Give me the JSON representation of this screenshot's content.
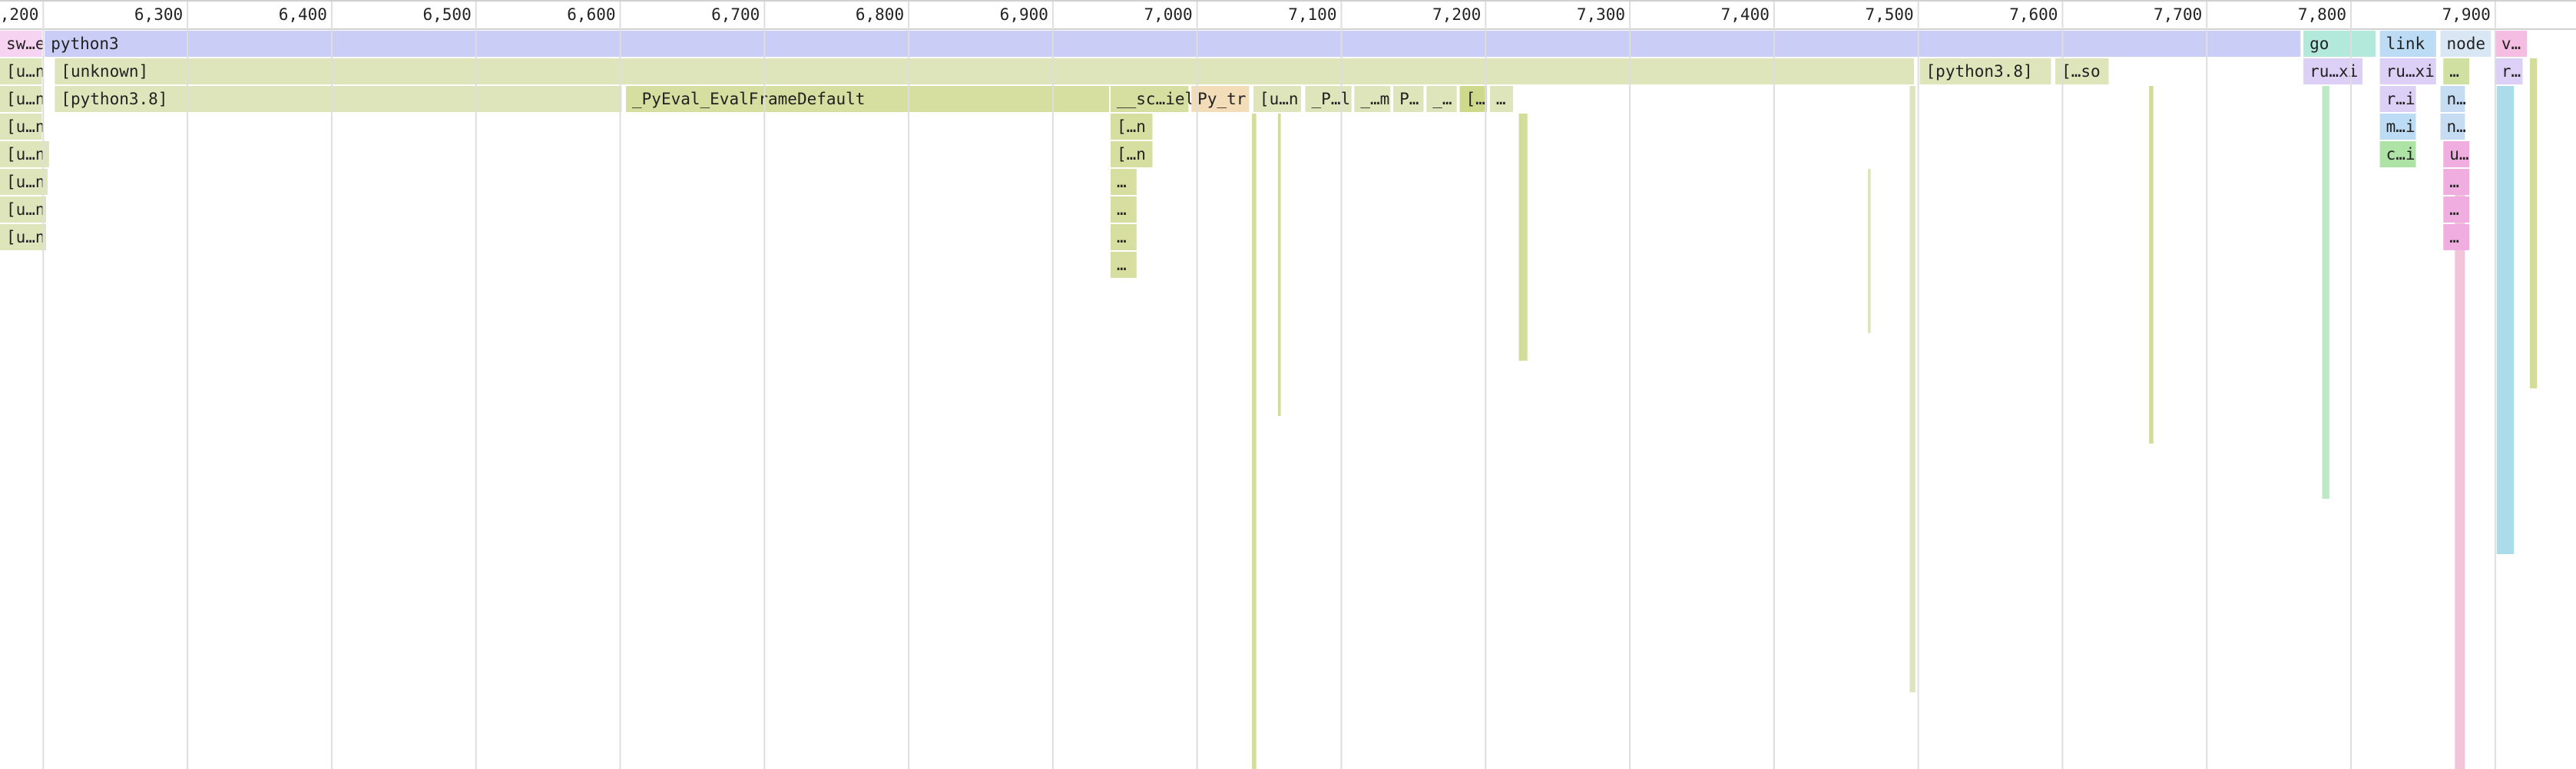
{
  "chart_data": {
    "type": "flamegraph",
    "xlim": [
      6170,
      7956
    ],
    "xticks": [
      {
        "value": 6200,
        "label": "6,200"
      },
      {
        "value": 6300,
        "label": "6,300"
      },
      {
        "value": 6400,
        "label": "6,400"
      },
      {
        "value": 6500,
        "label": "6,500"
      },
      {
        "value": 6600,
        "label": "6,600"
      },
      {
        "value": 6700,
        "label": "6,700"
      },
      {
        "value": 6800,
        "label": "6,800"
      },
      {
        "value": 6900,
        "label": "6,900"
      },
      {
        "value": 7000,
        "label": "7,000"
      },
      {
        "value": 7100,
        "label": "7,100"
      },
      {
        "value": 7200,
        "label": "7,200"
      },
      {
        "value": 7300,
        "label": "7,300"
      },
      {
        "value": 7400,
        "label": "7,400"
      },
      {
        "value": 7500,
        "label": "7,500"
      },
      {
        "value": 7600,
        "label": "7,600"
      },
      {
        "value": 7700,
        "label": "7,700"
      },
      {
        "value": 7800,
        "label": "7,800"
      },
      {
        "value": 7900,
        "label": "7,900"
      }
    ],
    "grid": true,
    "frames": [
      {
        "name": "sw…e",
        "depth": 0,
        "start": 6170,
        "end": 6199,
        "color": "#f6d3f0"
      },
      {
        "name": "python3",
        "depth": 0,
        "start": 6201,
        "end": 7765,
        "color": "#cacdf6"
      },
      {
        "name": "go",
        "depth": 0,
        "start": 7767,
        "end": 7817,
        "color": "#b3e9da"
      },
      {
        "name": "link",
        "depth": 0,
        "start": 7820,
        "end": 7859,
        "color": "#bcdcf6"
      },
      {
        "name": "node",
        "depth": 0,
        "start": 7862,
        "end": 7897,
        "color": "#d9e6f4"
      },
      {
        "name": "v…",
        "depth": 0,
        "start": 7900,
        "end": 7922,
        "color": "#f6bde2"
      },
      {
        "name": "[u…n",
        "depth": 1,
        "start": 6170,
        "end": 6199,
        "color": "#dfe5bb"
      },
      {
        "name": "[unknown]",
        "depth": 1,
        "start": 6208,
        "end": 7497,
        "color": "#dfe5bb"
      },
      {
        "name": "[python3.8]",
        "depth": 1,
        "start": 7501,
        "end": 7592,
        "color": "#dfe5bb"
      },
      {
        "name": "[…so",
        "depth": 1,
        "start": 7595,
        "end": 7632,
        "color": "#dfe5bb"
      },
      {
        "name": "ru…xi",
        "depth": 1,
        "start": 7767,
        "end": 7808,
        "color": "#ddd0f6"
      },
      {
        "name": "ru…xi",
        "depth": 1,
        "start": 7820,
        "end": 7859,
        "color": "#ddd0f6"
      },
      {
        "name": "…",
        "depth": 1,
        "start": 7864,
        "end": 7882,
        "color": "#cfe0a0"
      },
      {
        "name": "r…",
        "depth": 1,
        "start": 7900,
        "end": 7919,
        "color": "#ddd0f6"
      },
      {
        "name": "[u…n",
        "depth": 2,
        "start": 6170,
        "end": 6199,
        "color": "#dfe5bb"
      },
      {
        "name": "[python3.8]",
        "depth": 2,
        "start": 6208,
        "end": 6601,
        "color": "#dfe5bb"
      },
      {
        "name": "_PyEval_EvalFrameDefault",
        "depth": 2,
        "start": 6604,
        "end": 6939,
        "color": "#d6df9f"
      },
      {
        "name": "__sc…iel",
        "depth": 2,
        "start": 6940,
        "end": 6994,
        "color": "#d6df9f"
      },
      {
        "name": "Py_tr",
        "depth": 2,
        "start": 6996,
        "end": 7036,
        "color": "#f3dcb8"
      },
      {
        "name": "[u…n",
        "depth": 2,
        "start": 7039,
        "end": 7072,
        "color": "#dfe5bb"
      },
      {
        "name": "_P…l",
        "depth": 2,
        "start": 7075,
        "end": 7107,
        "color": "#dfe5bb"
      },
      {
        "name": "_…m",
        "depth": 2,
        "start": 7109,
        "end": 7134,
        "color": "#dfe5bb"
      },
      {
        "name": "P…",
        "depth": 2,
        "start": 7136,
        "end": 7157,
        "color": "#dfe5bb"
      },
      {
        "name": "_…",
        "depth": 2,
        "start": 7159,
        "end": 7180,
        "color": "#dfe5bb"
      },
      {
        "name": "[…",
        "depth": 2,
        "start": 7182,
        "end": 7201,
        "color": "#cfd98c"
      },
      {
        "name": "…",
        "depth": 2,
        "start": 7203,
        "end": 7219,
        "color": "#dfe5bb"
      },
      {
        "name": "r…i",
        "depth": 2,
        "start": 7820,
        "end": 7845,
        "color": "#ddd0f6"
      },
      {
        "name": "n…",
        "depth": 2,
        "start": 7862,
        "end": 7879,
        "color": "#c6dcf2"
      },
      {
        "name": "[u…n",
        "depth": 3,
        "start": 6170,
        "end": 6199,
        "color": "#dfe5bb"
      },
      {
        "name": "[…n",
        "depth": 3,
        "start": 6940,
        "end": 6969,
        "color": "#d6df9f"
      },
      {
        "name": "m…i",
        "depth": 3,
        "start": 7820,
        "end": 7845,
        "color": "#bcdcf6"
      },
      {
        "name": "n…",
        "depth": 3,
        "start": 7862,
        "end": 7879,
        "color": "#c6dcf2"
      },
      {
        "name": "[u…n",
        "depth": 4,
        "start": 6170,
        "end": 6204,
        "color": "#dfe5bb"
      },
      {
        "name": "[…n",
        "depth": 4,
        "start": 6940,
        "end": 6969,
        "color": "#d6df9f"
      },
      {
        "name": "c…i",
        "depth": 4,
        "start": 7820,
        "end": 7845,
        "color": "#aee3a6"
      },
      {
        "name": "u…",
        "depth": 4,
        "start": 7864,
        "end": 7882,
        "color": "#f0addf"
      },
      {
        "name": "[u…n",
        "depth": 5,
        "start": 6170,
        "end": 6203,
        "color": "#dfe5bb"
      },
      {
        "name": "…",
        "depth": 5,
        "start": 6940,
        "end": 6958,
        "color": "#d6df9f"
      },
      {
        "name": "…",
        "depth": 5,
        "start": 7864,
        "end": 7882,
        "color": "#f0addf"
      },
      {
        "name": "[u…n",
        "depth": 6,
        "start": 6170,
        "end": 6202,
        "color": "#dfe5bb"
      },
      {
        "name": "…",
        "depth": 6,
        "start": 6940,
        "end": 6958,
        "color": "#d6df9f"
      },
      {
        "name": "…",
        "depth": 6,
        "start": 7864,
        "end": 7882,
        "color": "#f0addf"
      },
      {
        "name": "[u…n",
        "depth": 7,
        "start": 6170,
        "end": 6202,
        "color": "#dfe5bb"
      },
      {
        "name": "…",
        "depth": 7,
        "start": 6940,
        "end": 6958,
        "color": "#d6df9f"
      },
      {
        "name": "…",
        "depth": 7,
        "start": 7864,
        "end": 7882,
        "color": "#f0addf"
      },
      {
        "name": "…",
        "depth": 8,
        "start": 6940,
        "end": 6958,
        "color": "#d6df9f"
      }
    ],
    "slices": [
      {
        "start": 7038,
        "end": 7041,
        "depths": [
          3,
          26
        ],
        "color": "#d3dc9a"
      },
      {
        "start": 7056,
        "end": 7058,
        "depths": [
          3,
          13
        ],
        "color": "#d3dc9a"
      },
      {
        "start": 7223,
        "end": 7229,
        "depths": [
          3,
          11
        ],
        "color": "#d3dc9a"
      },
      {
        "start": 7465,
        "end": 7467,
        "depths": [
          5,
          10
        ],
        "color": "#dfe5bb"
      },
      {
        "start": 7494,
        "end": 7498,
        "depths": [
          2,
          23
        ],
        "color": "#dfe5bb"
      },
      {
        "start": 7660,
        "end": 7663,
        "depths": [
          2,
          14
        ],
        "color": "#d3dc9a"
      },
      {
        "start": 7780,
        "end": 7785,
        "depths": [
          2,
          16
        ],
        "color": "#bfe9c6"
      },
      {
        "start": 7872,
        "end": 7879,
        "depths": [
          5,
          26
        ],
        "color": "#f2c4da"
      },
      {
        "start": 7901,
        "end": 7913,
        "depths": [
          2,
          18
        ],
        "color": "#aadce9"
      },
      {
        "start": 7924,
        "end": 7929,
        "depths": [
          1,
          12
        ],
        "color": "#d3dc9a"
      }
    ]
  }
}
